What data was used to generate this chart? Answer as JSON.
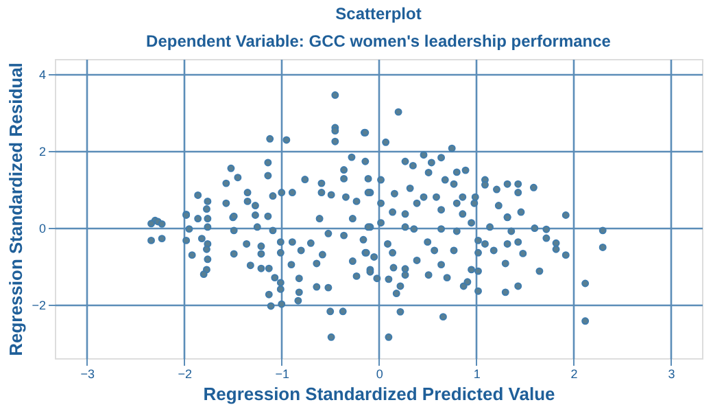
{
  "chart_data": {
    "type": "scatter",
    "title": "Scatterplot",
    "subtitle": "Dependent Variable: GCC women's leadership performance",
    "xlabel": "Regression Standardized Predicted Value",
    "ylabel": "Regression Standardized Residual",
    "xlim": [
      -3.33,
      3.32
    ],
    "ylim": [
      -3.4,
      4.4
    ],
    "xticks": [
      -3,
      -2,
      -1,
      0,
      1,
      2,
      3
    ],
    "yticks": [
      -2,
      0,
      2,
      4
    ],
    "grid": true,
    "marker": "circle",
    "series": [
      {
        "color": "#587f93",
        "x": [
          -0.45,
          -0.45,
          -0.45,
          -0.45,
          -0.15,
          -1.12,
          -0.95,
          -0.28,
          -1.52,
          -1.57,
          -1.45,
          -1.14,
          -1.14,
          -1.86,
          -1.76,
          -1.77,
          -1.98,
          -1.86,
          -1.76,
          -2.3,
          -0.76,
          -0.59,
          -0.36,
          -0.36,
          -0.14,
          -0.11,
          -0.59,
          -0.49,
          -1.0,
          -0.89,
          -1.09,
          -1.35,
          -1.35,
          -1.57,
          -1.5,
          -1.27,
          -0.34,
          -0.23,
          -0.09,
          0.2,
          -0.14,
          0.07,
          0.75,
          0.46,
          0.64,
          0.27,
          0.35,
          0.54,
          0.8,
          0.89,
          0.51,
          0.02,
          0.68,
          1.09,
          1.09,
          1.32,
          1.43,
          1.59,
          1.21,
          1.43,
          0.99,
          1.92,
          0.32,
          0.16,
          -0.11,
          0.46,
          0.59,
          0.86,
          0.77,
          0.02,
          0.39,
          0.8,
          0.98,
          1.23,
          1.46,
          0.14,
          0.64,
          0.27,
          1.32,
          -2.34,
          -2.27,
          -2.23,
          -2.34,
          -2.23,
          -1.98,
          -1.98,
          -1.95,
          -1.92,
          -1.82,
          -1.76,
          -1.76,
          -1.77,
          -1.76,
          -1.77,
          -1.8,
          -1.49,
          -1.49,
          -1.49,
          -1.36,
          -1.32,
          -1.21,
          -1.21,
          -1.21,
          -1.25,
          -1.27,
          -1.13,
          -1.07,
          -1.13,
          -1.11,
          -1.0,
          -1.01,
          -1.01,
          -1.01,
          -1.01,
          -1.09,
          -1.14,
          -0.89,
          -0.9,
          -0.82,
          -0.82,
          -0.83,
          -0.8,
          -0.7,
          -0.61,
          -0.64,
          -0.64,
          -0.58,
          -0.52,
          -0.5,
          -0.37,
          -0.49,
          -0.52,
          -0.36,
          -0.27,
          -0.23,
          -0.27,
          -0.14,
          -0.09,
          -0.09,
          0.1,
          0.22,
          0.66,
          2.12,
          2.12,
          2.3,
          2.3,
          1.92,
          1.82,
          1.82,
          1.72,
          1.72,
          1.65,
          1.6,
          1.43,
          1.3,
          1.02,
          1.02,
          1.02,
          1.02,
          0.87,
          0.91,
          0.95,
          0.7,
          0.51,
          0.64,
          0.39,
          0.27,
          0.27,
          0.22,
          0.18,
          0.1,
          -0.02,
          -0.09,
          0.15,
          0.14,
          0.09,
          0.5,
          0.57,
          0.77,
          0.8,
          0.86,
          1.09,
          1.18,
          1.3,
          1.32,
          1.43,
          1.48,
          1.36,
          1.14,
          1.32,
          0.95,
          0.64,
          0.36,
          0.27,
          0.02,
          -0.11,
          -0.16,
          -0.13,
          -0.05
        ],
        "values": [
          3.46,
          2.61,
          2.53,
          2.25,
          2.48,
          2.32,
          2.29,
          1.84,
          1.55,
          1.16,
          1.31,
          1.7,
          1.36,
          0.85,
          0.69,
          0.49,
          0.35,
          0.24,
          0.24,
          0.19,
          1.26,
          1.16,
          1.51,
          1.28,
          1.73,
          1.28,
          0.92,
          0.86,
          0.92,
          0.92,
          0.83,
          0.92,
          0.69,
          0.64,
          0.27,
          0.58,
          0.8,
          0.69,
          0.92,
          3.02,
          2.48,
          2.23,
          2.07,
          1.9,
          1.83,
          1.73,
          1.62,
          1.7,
          1.45,
          1.5,
          1.44,
          1.25,
          1.25,
          1.25,
          1.12,
          1.14,
          1.14,
          1.05,
          1.0,
          0.92,
          0.8,
          0.33,
          1.03,
          0.89,
          0.92,
          0.8,
          0.8,
          0.8,
          1.14,
          0.64,
          0.64,
          0.64,
          0.64,
          0.58,
          0.41,
          0.41,
          0.47,
          0.36,
          0.28,
          0.11,
          0.16,
          0.1,
          -0.33,
          -0.28,
          0.33,
          -0.33,
          -0.03,
          -0.71,
          -0.28,
          -0.42,
          0.02,
          -0.56,
          -0.82,
          -1.09,
          -1.21,
          0.3,
          -0.07,
          -0.68,
          -0.42,
          -0.98,
          -0.48,
          -0.68,
          -1.06,
          0.02,
          0.33,
          -1.06,
          -1.3,
          -1.74,
          -2.04,
          -1.99,
          -1.6,
          -1.43,
          -0.65,
          -0.37,
          -0.07,
          0.3,
          -0.37,
          -0.96,
          -1.32,
          -1.68,
          -1.9,
          -0.59,
          -0.4,
          0.24,
          -0.93,
          -1.54,
          -0.7,
          -1.56,
          -2.18,
          -2.18,
          -2.85,
          -0.15,
          -0.2,
          -0.87,
          -1.26,
          0.24,
          -0.65,
          -1.09,
          0.02,
          -2.85,
          -2.19,
          -2.32,
          -2.43,
          -1.45,
          -0.51,
          -0.07,
          -0.71,
          -0.4,
          -0.56,
          -0.04,
          -0.27,
          -1.13,
          -0.01,
          -1.52,
          -1.68,
          -1.65,
          -1.13,
          -0.65,
          -0.33,
          -1.52,
          -1.41,
          -1.09,
          -1.3,
          -1.23,
          -0.96,
          -0.85,
          -1.07,
          -1.23,
          -1.52,
          -1.71,
          -1.34,
          -1.32,
          -1.15,
          -1.04,
          -0.65,
          -0.42,
          -0.37,
          -0.59,
          -0.59,
          -0.09,
          0.36,
          -0.42,
          -0.59,
          -0.93,
          -0.42,
          -0.37,
          -0.67,
          -0.09,
          0.02,
          0.27,
          0.13,
          -0.03,
          -0.03,
          0.02,
          0.13,
          0.02,
          -0.31,
          -0.65,
          -0.76
        ]
      }
    ]
  }
}
